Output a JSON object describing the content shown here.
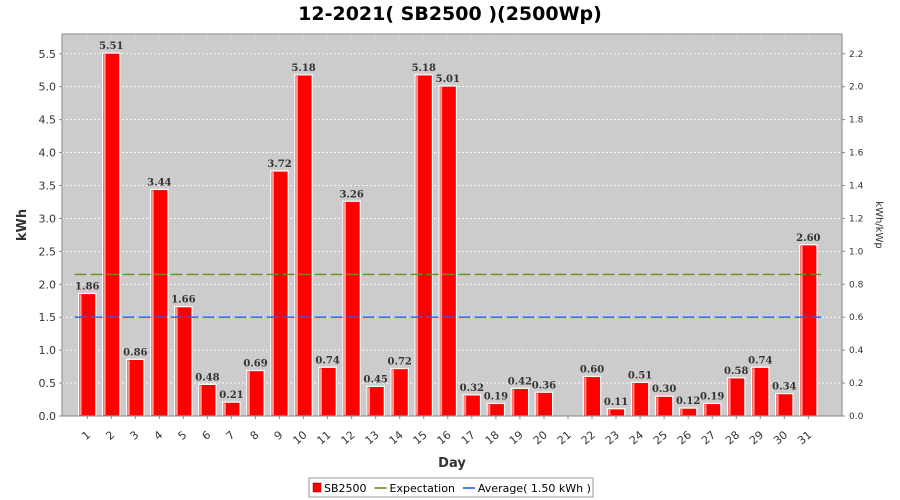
{
  "chart_data": {
    "type": "bar",
    "title": "12-2021( SB2500 )(2500Wp)",
    "xlabel": "Day",
    "ylabel": "kWh",
    "ylabel_right": "kWh/kWp",
    "categories": [
      "1",
      "2",
      "3",
      "4",
      "5",
      "6",
      "7",
      "8",
      "9",
      "10",
      "11",
      "12",
      "13",
      "14",
      "15",
      "16",
      "17",
      "18",
      "19",
      "20",
      "21",
      "22",
      "23",
      "24",
      "25",
      "26",
      "27",
      "28",
      "29",
      "30",
      "31"
    ],
    "series": [
      {
        "name": "SB2500",
        "color": "#ff0000",
        "values": [
          1.86,
          5.51,
          0.86,
          3.44,
          1.66,
          0.48,
          0.21,
          0.69,
          3.72,
          5.18,
          0.74,
          3.26,
          0.45,
          0.72,
          5.18,
          5.01,
          0.32,
          0.19,
          0.42,
          0.36,
          0.0,
          0.6,
          0.11,
          0.51,
          0.3,
          0.12,
          0.19,
          0.58,
          0.74,
          0.34,
          2.6
        ],
        "labels": [
          "1.86",
          "5.51",
          "0.86",
          "3.44",
          "1.66",
          "0.48",
          "0.21",
          "0.69",
          "3.72",
          "5.18",
          "0.74",
          "3.26",
          "0.45",
          "0.72",
          "5.18",
          "5.01",
          "0.32",
          "0.19",
          "0.42",
          "0.36",
          "",
          "0.60",
          "0.11",
          "0.51",
          "0.30",
          "0.12",
          "0.19",
          "0.58",
          "0.74",
          "0.34",
          "2.60"
        ]
      }
    ],
    "lines": [
      {
        "name": "Expectation",
        "value": 2.15,
        "color": "#6b8e23",
        "dash": true
      },
      {
        "name": "Average( 1.50 kWh )",
        "value": 1.5,
        "color": "#1e5fff",
        "dash": true
      }
    ],
    "ylim": [
      0,
      5.8
    ],
    "yticks": [
      "0.0",
      "0.5",
      "1.0",
      "1.5",
      "2.0",
      "2.5",
      "3.0",
      "3.5",
      "4.0",
      "4.5",
      "5.0",
      "5.5"
    ],
    "ylim_right": [
      0,
      2.32
    ],
    "yticks_right": [
      "0.0",
      "0.2",
      "0.4",
      "0.6",
      "0.8",
      "1.0",
      "1.2",
      "1.4",
      "1.6",
      "1.8",
      "2.0",
      "2.2"
    ],
    "grid": true,
    "legend_position": "bottom-center",
    "plot_background": "#cccccc"
  }
}
